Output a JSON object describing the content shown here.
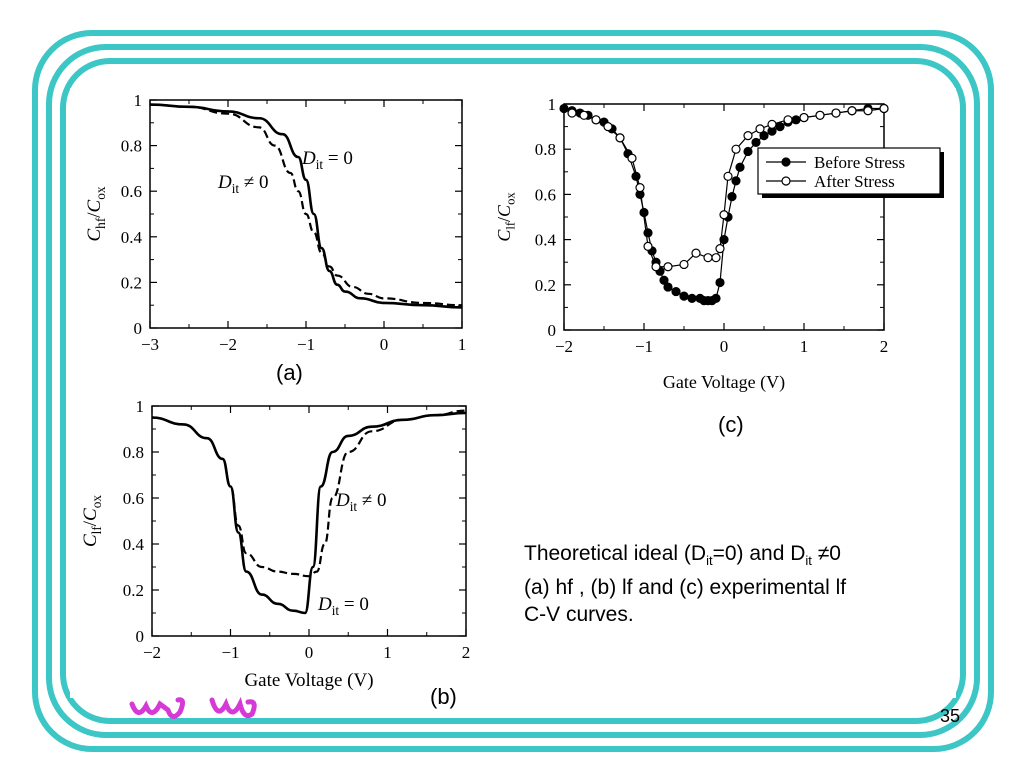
{
  "slide": {
    "page_number": "35",
    "description": {
      "line1_a": "Theoretical ideal (D",
      "line1_sub1": "it",
      "line1_b": "=0) and D",
      "line1_sub2": "it",
      "line1_c": " ≠0",
      "line2": "(a) hf , (b) lf and (c) experimental lf",
      "line3": "C-V curves."
    },
    "colors": {
      "border": "#3cc6c6",
      "logo": "#d63ad6"
    }
  },
  "panels": {
    "a": {
      "label": "(a)"
    },
    "b": {
      "label": "(b)"
    },
    "c": {
      "label": "(c)"
    }
  },
  "chart_data": [
    {
      "id": "a",
      "type": "line",
      "xlabel": "",
      "ylabel": "Chf/Cox",
      "xlim": [
        -3,
        1
      ],
      "ylim": [
        0,
        1
      ],
      "xticks": [
        "−3",
        "−2",
        "−1",
        "0",
        "1"
      ],
      "yticks": [
        "0",
        "0.2",
        "0.4",
        "0.6",
        "0.8",
        "1"
      ],
      "annotations": [
        "Dit = 0",
        "Dit ≠ 0"
      ],
      "series": [
        {
          "name": "Dit = 0",
          "style": "solid",
          "x": [
            -3,
            -2.5,
            -2,
            -1.6,
            -1.3,
            -1.1,
            -1.0,
            -0.9,
            -0.8,
            -0.7,
            -0.6,
            -0.5,
            -0.3,
            0,
            0.5,
            1
          ],
          "y": [
            0.98,
            0.97,
            0.95,
            0.92,
            0.85,
            0.75,
            0.65,
            0.5,
            0.35,
            0.25,
            0.19,
            0.16,
            0.13,
            0.11,
            0.1,
            0.09
          ]
        },
        {
          "name": "Dit ≠ 0",
          "style": "dashed",
          "x": [
            -3,
            -2.5,
            -2,
            -1.6,
            -1.4,
            -1.2,
            -1.1,
            -1.0,
            -0.9,
            -0.8,
            -0.7,
            -0.6,
            -0.4,
            -0.2,
            0,
            0.5,
            1
          ],
          "y": [
            0.98,
            0.97,
            0.94,
            0.88,
            0.8,
            0.68,
            0.6,
            0.5,
            0.42,
            0.33,
            0.27,
            0.23,
            0.18,
            0.15,
            0.13,
            0.11,
            0.1
          ]
        }
      ]
    },
    {
      "id": "b",
      "type": "line",
      "xlabel": "Gate Voltage (V)",
      "ylabel": "Clf/Cox",
      "xlim": [
        -2,
        2
      ],
      "ylim": [
        0,
        1
      ],
      "xticks": [
        "−2",
        "−1",
        "0",
        "1",
        "2"
      ],
      "yticks": [
        "0",
        "0.2",
        "0.4",
        "0.6",
        "0.8",
        "1"
      ],
      "annotations": [
        "Dit ≠ 0",
        "Dit = 0"
      ],
      "series": [
        {
          "name": "Dit = 0",
          "style": "solid",
          "x": [
            -2,
            -1.6,
            -1.3,
            -1.1,
            -1.0,
            -0.9,
            -0.8,
            -0.6,
            -0.4,
            -0.2,
            -0.05,
            0.05,
            0.15,
            0.3,
            0.5,
            0.8,
            1.2,
            1.6,
            2
          ],
          "y": [
            0.95,
            0.92,
            0.86,
            0.77,
            0.65,
            0.45,
            0.28,
            0.18,
            0.14,
            0.11,
            0.1,
            0.3,
            0.65,
            0.8,
            0.87,
            0.91,
            0.94,
            0.96,
            0.97
          ]
        },
        {
          "name": "Dit ≠ 0",
          "style": "dashed",
          "x": [
            -2,
            -1.6,
            -1.3,
            -1.1,
            -1.0,
            -0.9,
            -0.8,
            -0.6,
            -0.4,
            -0.2,
            0,
            0.1,
            0.2,
            0.3,
            0.5,
            0.8,
            1.2,
            1.6,
            2
          ],
          "y": [
            0.95,
            0.92,
            0.86,
            0.77,
            0.65,
            0.48,
            0.36,
            0.3,
            0.28,
            0.27,
            0.26,
            0.28,
            0.4,
            0.6,
            0.8,
            0.89,
            0.94,
            0.96,
            0.98
          ]
        }
      ]
    },
    {
      "id": "c",
      "type": "scatter",
      "xlabel": "Gate Voltage (V)",
      "ylabel": "Clf/Cox",
      "xlim": [
        -2,
        2
      ],
      "ylim": [
        0,
        1
      ],
      "xticks": [
        "−2",
        "−1",
        "0",
        "1",
        "2"
      ],
      "yticks": [
        "0",
        "0.2",
        "0.4",
        "0.6",
        "0.8",
        "1"
      ],
      "legend": {
        "position": "right",
        "entries": [
          "Before Stress",
          "After Stress"
        ]
      },
      "series": [
        {
          "name": "Before Stress",
          "marker": "filled-circle",
          "x": [
            -2,
            -1.9,
            -1.8,
            -1.7,
            -1.6,
            -1.5,
            -1.4,
            -1.3,
            -1.2,
            -1.1,
            -1.05,
            -1.0,
            -0.95,
            -0.9,
            -0.85,
            -0.8,
            -0.75,
            -0.7,
            -0.6,
            -0.5,
            -0.4,
            -0.3,
            -0.25,
            -0.2,
            -0.15,
            -0.1,
            -0.05,
            0,
            0.05,
            0.1,
            0.15,
            0.2,
            0.3,
            0.4,
            0.5,
            0.6,
            0.7,
            0.8,
            0.9,
            1.0,
            1.2,
            1.4,
            1.6,
            1.8,
            2.0
          ],
          "y": [
            0.98,
            0.97,
            0.96,
            0.95,
            0.93,
            0.92,
            0.89,
            0.85,
            0.78,
            0.68,
            0.6,
            0.52,
            0.43,
            0.35,
            0.3,
            0.26,
            0.22,
            0.19,
            0.17,
            0.15,
            0.14,
            0.14,
            0.13,
            0.13,
            0.13,
            0.14,
            0.21,
            0.4,
            0.5,
            0.59,
            0.66,
            0.72,
            0.79,
            0.83,
            0.86,
            0.88,
            0.9,
            0.92,
            0.93,
            0.94,
            0.95,
            0.96,
            0.97,
            0.98,
            0.98
          ]
        },
        {
          "name": "After Stress",
          "marker": "open-circle",
          "x": [
            -1.9,
            -1.75,
            -1.6,
            -1.45,
            -1.3,
            -1.15,
            -1.05,
            -0.95,
            -0.85,
            -0.7,
            -0.5,
            -0.35,
            -0.2,
            -0.1,
            -0.05,
            0,
            0.05,
            0.15,
            0.3,
            0.45,
            0.6,
            0.8,
            1.0,
            1.2,
            1.4,
            1.6,
            1.8,
            2.0
          ],
          "y": [
            0.96,
            0.95,
            0.93,
            0.9,
            0.85,
            0.76,
            0.63,
            0.37,
            0.28,
            0.28,
            0.29,
            0.34,
            0.32,
            0.32,
            0.36,
            0.51,
            0.68,
            0.8,
            0.86,
            0.89,
            0.91,
            0.93,
            0.94,
            0.95,
            0.96,
            0.97,
            0.97,
            0.98
          ]
        }
      ]
    }
  ]
}
